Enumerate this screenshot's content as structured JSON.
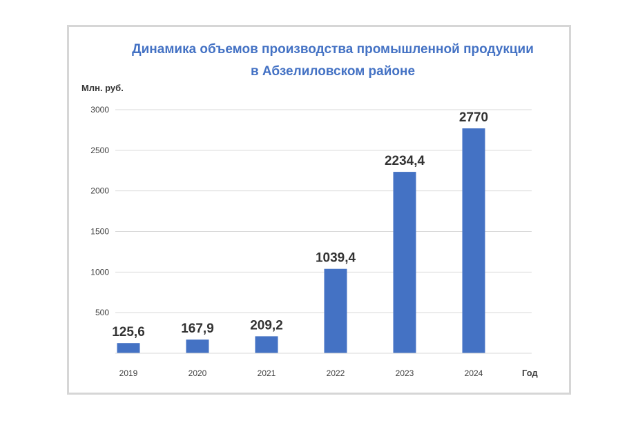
{
  "chart_data": {
    "type": "bar",
    "title_lines": [
      "Динамика объемов производства промышленной продукции",
      "в Абзелиловском районе"
    ],
    "ylabel": "Млн. руб.",
    "xlabel": "Год",
    "categories": [
      "2019",
      "2020",
      "2021",
      "2022",
      "2023",
      "2024"
    ],
    "values": [
      125.6,
      167.9,
      209.2,
      1039.4,
      2234.4,
      2770
    ],
    "data_labels": [
      "125,6",
      "167,9",
      "209,2",
      "1039,4",
      "2234,4",
      "2770"
    ],
    "yticks": [
      500,
      1000,
      1500,
      2000,
      2500,
      3000
    ],
    "ylim": [
      0,
      3000
    ],
    "grid": true,
    "bar_color": "#4472c4"
  }
}
